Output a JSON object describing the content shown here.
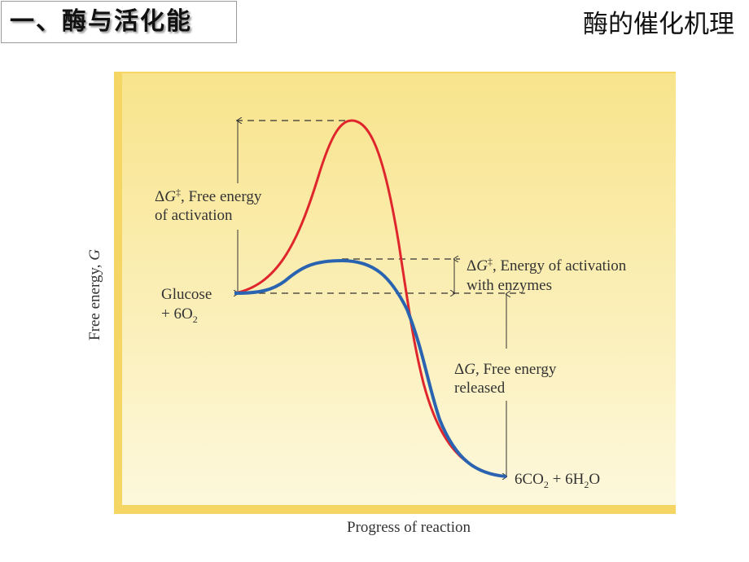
{
  "slide": {
    "section_title": "一、酶与活化能",
    "topic_title": "酶的催化机理"
  },
  "diagram": {
    "y_axis_label": {
      "text": "Free energy, ",
      "italic": "G"
    },
    "x_axis_label": "Progress of reaction",
    "reactants": {
      "line1": "Glucose",
      "line2_prefix": "+ 6O",
      "line2_sub": "2"
    },
    "products": {
      "p1": "6CO",
      "sub1": "2",
      "p2": " + 6H",
      "sub2": "2",
      "p3": "O"
    },
    "uncatalyzed_label": {
      "delta": "Δ",
      "g": "G",
      "dagger": "‡",
      "line1_rest": ", Free energy",
      "line2": "of activation"
    },
    "catalyzed_label": {
      "delta": "Δ",
      "g": "G",
      "dagger": "‡",
      "line1_rest": ", Energy of activation",
      "line2": "with enzymes"
    },
    "released_label": {
      "delta": "Δ",
      "g": "G",
      "line1_rest": ", Free energy",
      "line2": "released"
    },
    "colors": {
      "uncatalyzed_curve": "#e0262d",
      "catalyzed_curve": "#2a64b0",
      "panel_top": "#f8e48c",
      "panel_bottom": "#fdf8dc",
      "panel_border": "#f5d665"
    }
  }
}
